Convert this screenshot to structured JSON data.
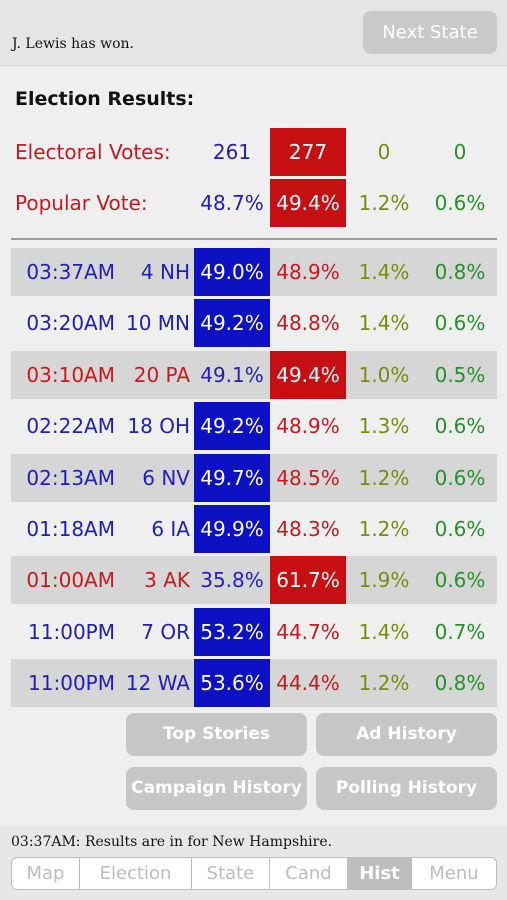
{
  "header": {
    "status": "J. Lewis has won.",
    "next_state_label": "Next State"
  },
  "results": {
    "title": "Election Results:",
    "electoral": {
      "label": "Electoral Votes:",
      "values": [
        "261",
        "277",
        "0",
        "0"
      ]
    },
    "popular": {
      "label": "Popular Vote:",
      "values": [
        "48.7%",
        "49.4%",
        "1.2%",
        "0.6%"
      ]
    }
  },
  "history": [
    {
      "time": "03:37AM",
      "ev": "4",
      "state": "NH",
      "p1": "49.0%",
      "p2": "48.9%",
      "p3": "1.4%",
      "p4": "0.8%",
      "winner": "blue"
    },
    {
      "time": "03:20AM",
      "ev": "10",
      "state": "MN",
      "p1": "49.2%",
      "p2": "48.8%",
      "p3": "1.4%",
      "p4": "0.6%",
      "winner": "blue"
    },
    {
      "time": "03:10AM",
      "ev": "20",
      "state": "PA",
      "p1": "49.1%",
      "p2": "49.4%",
      "p3": "1.0%",
      "p4": "0.5%",
      "winner": "red"
    },
    {
      "time": "02:22AM",
      "ev": "18",
      "state": "OH",
      "p1": "49.2%",
      "p2": "48.9%",
      "p3": "1.3%",
      "p4": "0.6%",
      "winner": "blue"
    },
    {
      "time": "02:13AM",
      "ev": "6",
      "state": "NV",
      "p1": "49.7%",
      "p2": "48.5%",
      "p3": "1.2%",
      "p4": "0.6%",
      "winner": "blue"
    },
    {
      "time": "01:18AM",
      "ev": "6",
      "state": "IA",
      "p1": "49.9%",
      "p2": "48.3%",
      "p3": "1.2%",
      "p4": "0.6%",
      "winner": "blue"
    },
    {
      "time": "01:00AM",
      "ev": "3",
      "state": "AK",
      "p1": "35.8%",
      "p2": "61.7%",
      "p3": "1.9%",
      "p4": "0.6%",
      "winner": "red"
    },
    {
      "time": "11:00PM",
      "ev": "7",
      "state": "OR",
      "p1": "53.2%",
      "p2": "44.7%",
      "p3": "1.4%",
      "p4": "0.7%",
      "winner": "blue"
    },
    {
      "time": "11:00PM",
      "ev": "12",
      "state": "WA",
      "p1": "53.6%",
      "p2": "44.4%",
      "p3": "1.2%",
      "p4": "0.8%",
      "winner": "blue"
    }
  ],
  "buttons": {
    "top_stories": "Top Stories",
    "ad_history": "Ad History",
    "campaign_history": "Campaign History",
    "polling_history": "Polling History"
  },
  "footer": {
    "log": "03:37AM: Results are in for New Hampshire."
  },
  "tabs": [
    "Map",
    "Election",
    "State",
    "Cand",
    "Hist",
    "Menu"
  ],
  "active_tab": "Hist",
  "colors": {
    "blue_party": "#0d11c4",
    "red_party": "#c60f12",
    "third_party": "#7c8a10",
    "fourth_party": "#26902a"
  }
}
